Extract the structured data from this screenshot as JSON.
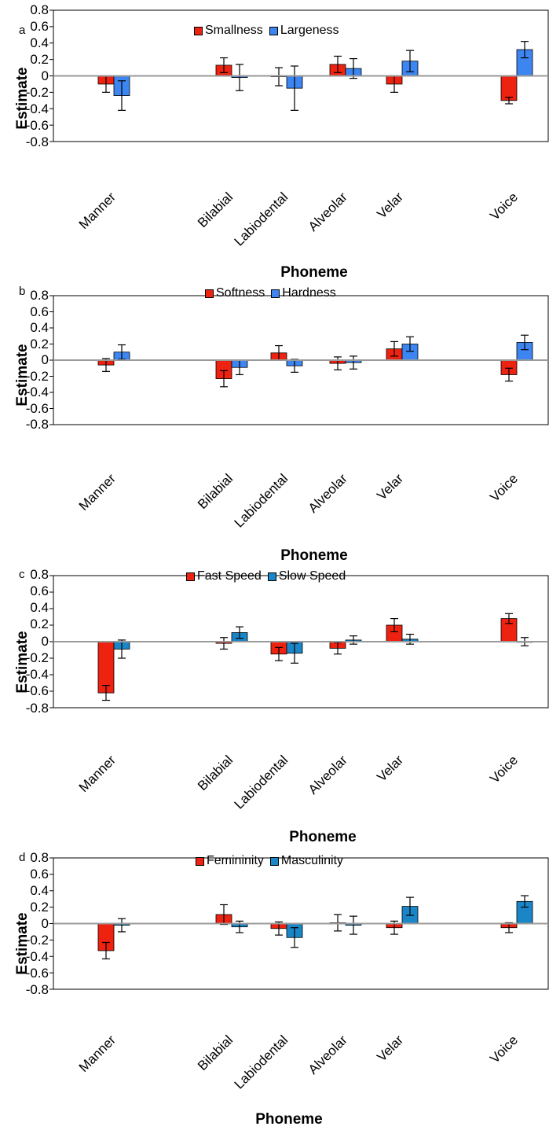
{
  "chart_data": [
    {
      "type": "bar",
      "panel_label": "a",
      "ylabel": "Estimate",
      "xlabel": "Phoneme",
      "ylim": [
        -0.8,
        0.8
      ],
      "yticks": [
        "0.8",
        "0.6",
        "0.4",
        "0.2",
        "0",
        "-0.2",
        "-0.4",
        "-0.6",
        "-0.8"
      ],
      "categories": [
        "Manner",
        "Bilabial",
        "Labiodental",
        "Alveolar",
        "Velar",
        "Voice"
      ],
      "series": [
        {
          "name": "Smallness",
          "color": "#ee2211",
          "values": [
            -0.1,
            0.13,
            -0.01,
            0.14,
            -0.1,
            -0.3
          ],
          "errors": [
            0.1,
            0.09,
            0.11,
            0.1,
            0.1,
            0.04
          ]
        },
        {
          "name": "Largeness",
          "color": "#3d85f0",
          "values": [
            -0.24,
            -0.02,
            -0.15,
            0.09,
            0.18,
            0.32
          ],
          "errors": [
            0.18,
            0.16,
            0.27,
            0.12,
            0.13,
            0.1
          ]
        }
      ]
    },
    {
      "type": "bar",
      "panel_label": "b",
      "ylabel": "Estimate",
      "xlabel": "Phoneme",
      "ylim": [
        -0.8,
        0.8
      ],
      "yticks": [
        "0.8",
        "0.6",
        "0.4",
        "0.2",
        "0",
        "-0.2",
        "-0.4",
        "-0.6",
        "-0.8"
      ],
      "categories": [
        "Manner",
        "Bilabial",
        "Labiodental",
        "Alveolar",
        "Velar",
        "Voice"
      ],
      "series": [
        {
          "name": "Softness",
          "color": "#ee2211",
          "values": [
            -0.06,
            -0.23,
            0.09,
            -0.04,
            0.14,
            -0.18
          ],
          "errors": [
            0.08,
            0.1,
            0.09,
            0.08,
            0.09,
            0.08
          ]
        },
        {
          "name": "Hardness",
          "color": "#3d85f0",
          "values": [
            0.1,
            -0.09,
            -0.07,
            -0.03,
            0.2,
            0.22
          ],
          "errors": [
            0.09,
            0.09,
            0.08,
            0.08,
            0.09,
            0.09
          ]
        }
      ]
    },
    {
      "type": "bar",
      "panel_label": "c",
      "ylabel": "Estimate",
      "xlabel": "Phoneme",
      "ylim": [
        -0.8,
        0.8
      ],
      "yticks": [
        "0.8",
        "0.6",
        "0.4",
        "0.2",
        "0",
        "-0.2",
        "-0.4",
        "-0.6",
        "-0.8"
      ],
      "categories": [
        "Manner",
        "Bilabial",
        "Labiodental",
        "Alveolar",
        "Velar",
        "Voice"
      ],
      "series": [
        {
          "name": "Fast Speed",
          "color": "#ee2211",
          "values": [
            -0.62,
            -0.02,
            -0.15,
            -0.08,
            0.2,
            0.28
          ],
          "errors": [
            0.09,
            0.07,
            0.08,
            0.07,
            0.08,
            0.06
          ]
        },
        {
          "name": "Slow Speed",
          "color": "#1a86c8",
          "values": [
            -0.09,
            0.11,
            -0.14,
            0.02,
            0.03,
            0.0
          ],
          "errors": [
            0.11,
            0.07,
            0.12,
            0.05,
            0.06,
            0.05
          ]
        }
      ]
    },
    {
      "type": "bar",
      "panel_label": "d",
      "ylabel": "Estimate",
      "xlabel": "Phoneme",
      "ylim": [
        -0.8,
        0.8
      ],
      "yticks": [
        "0.8",
        "0.6",
        "0.4",
        "0.2",
        "0",
        "-0.2",
        "-0.4",
        "-0.6",
        "-0.8"
      ],
      "categories": [
        "Manner",
        "Bilabial",
        "Labiodental",
        "Alveolar",
        "Velar",
        "Voice"
      ],
      "series": [
        {
          "name": "Femininity",
          "color": "#ee2211",
          "values": [
            -0.33,
            0.11,
            -0.06,
            0.01,
            -0.05,
            -0.05
          ],
          "errors": [
            0.1,
            0.12,
            0.08,
            0.1,
            0.08,
            0.06
          ]
        },
        {
          "name": "Masculinity",
          "color": "#1a86c8",
          "values": [
            -0.02,
            -0.04,
            -0.17,
            -0.02,
            0.21,
            0.27
          ],
          "errors": [
            0.08,
            0.07,
            0.12,
            0.11,
            0.11,
            0.07
          ]
        }
      ]
    }
  ]
}
